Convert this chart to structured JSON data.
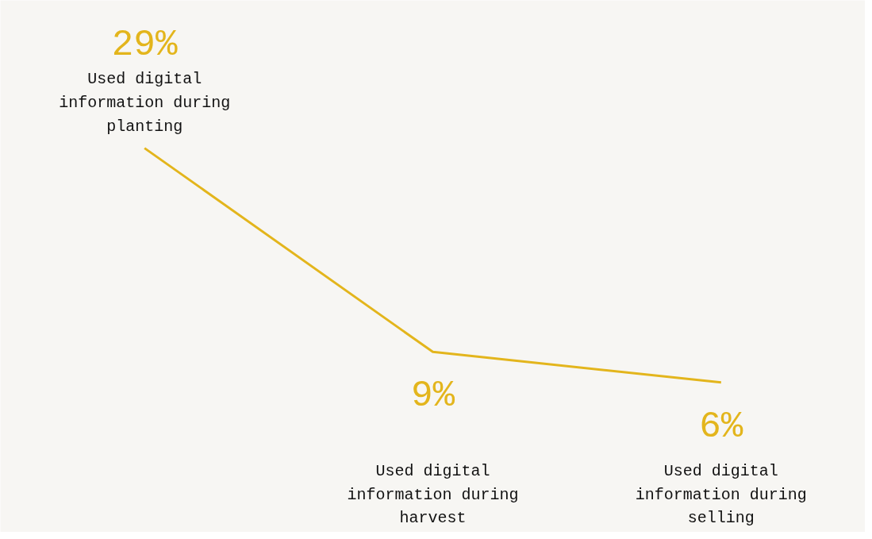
{
  "chart_data": {
    "type": "line",
    "categories": [
      "Used digital information during planting",
      "Used digital information during harvest",
      "Used digital information during selling"
    ],
    "values": [
      29,
      9,
      6
    ],
    "color": "#e3b51c",
    "value_labels": [
      "29%",
      "9%",
      "6%"
    ],
    "marker": "none",
    "grid": false,
    "tick_labels": false
  }
}
